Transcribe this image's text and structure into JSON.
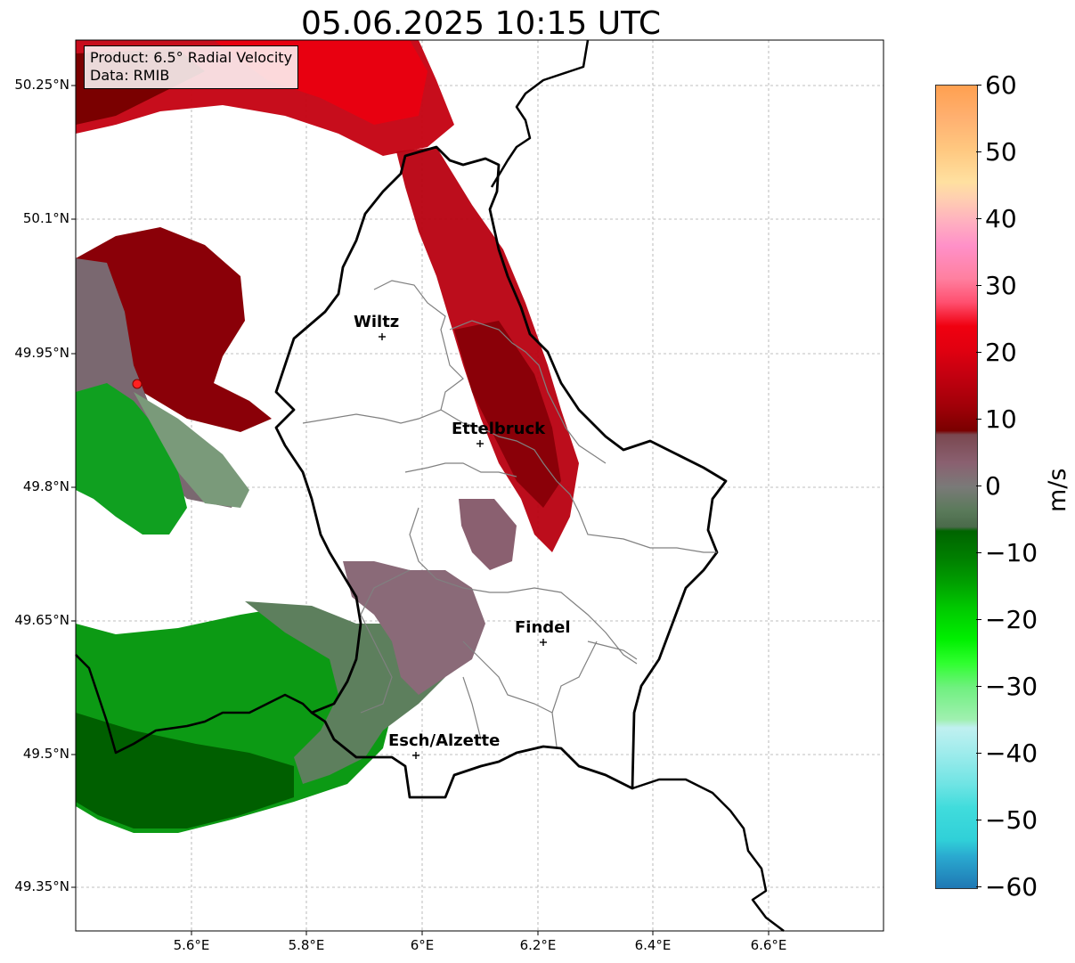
{
  "title": "05.06.2025 10:15 UTC",
  "info": {
    "product": "Product: 6.5° Radial Velocity",
    "data_source": "Data: RMIB"
  },
  "lat_ticks": [
    "50.25°N",
    "50.1°N",
    "49.95°N",
    "49.8°N",
    "49.65°N",
    "49.5°N",
    "49.35°N"
  ],
  "lon_ticks": [
    "5.6°E",
    "5.8°E",
    "6°E",
    "6.2°E",
    "6.4°E",
    "6.6°E"
  ],
  "cities": [
    {
      "name": "Wiltz"
    },
    {
      "name": "Ettelbruck"
    },
    {
      "name": "Findel"
    },
    {
      "name": "Esch/Alzette"
    }
  ],
  "colorbar": {
    "unit": "m/s",
    "ticks": [
      "60",
      "50",
      "40",
      "30",
      "20",
      "10",
      "0",
      "−10",
      "−20",
      "−30",
      "−40",
      "−50",
      "−60"
    ],
    "min": -60,
    "max": 60,
    "colors": {
      "strong_inbound": "#1f78b4",
      "cyan": "#2ee0e0",
      "light_cyan": "#b8f0f0",
      "light_green": "#7df0a0",
      "green": "#00c800",
      "dark_green": "#006400",
      "neutral_green": "#5a7a5a",
      "neutral_pink": "#8a6070",
      "dark_red": "#7a0000",
      "red": "#e00010",
      "pink": "#ff5080",
      "light_pink": "#ffb0c0",
      "yellow": "#ffe0a0",
      "orange": "#ffa050"
    }
  },
  "radar_site": {
    "color": "#ff2020"
  }
}
